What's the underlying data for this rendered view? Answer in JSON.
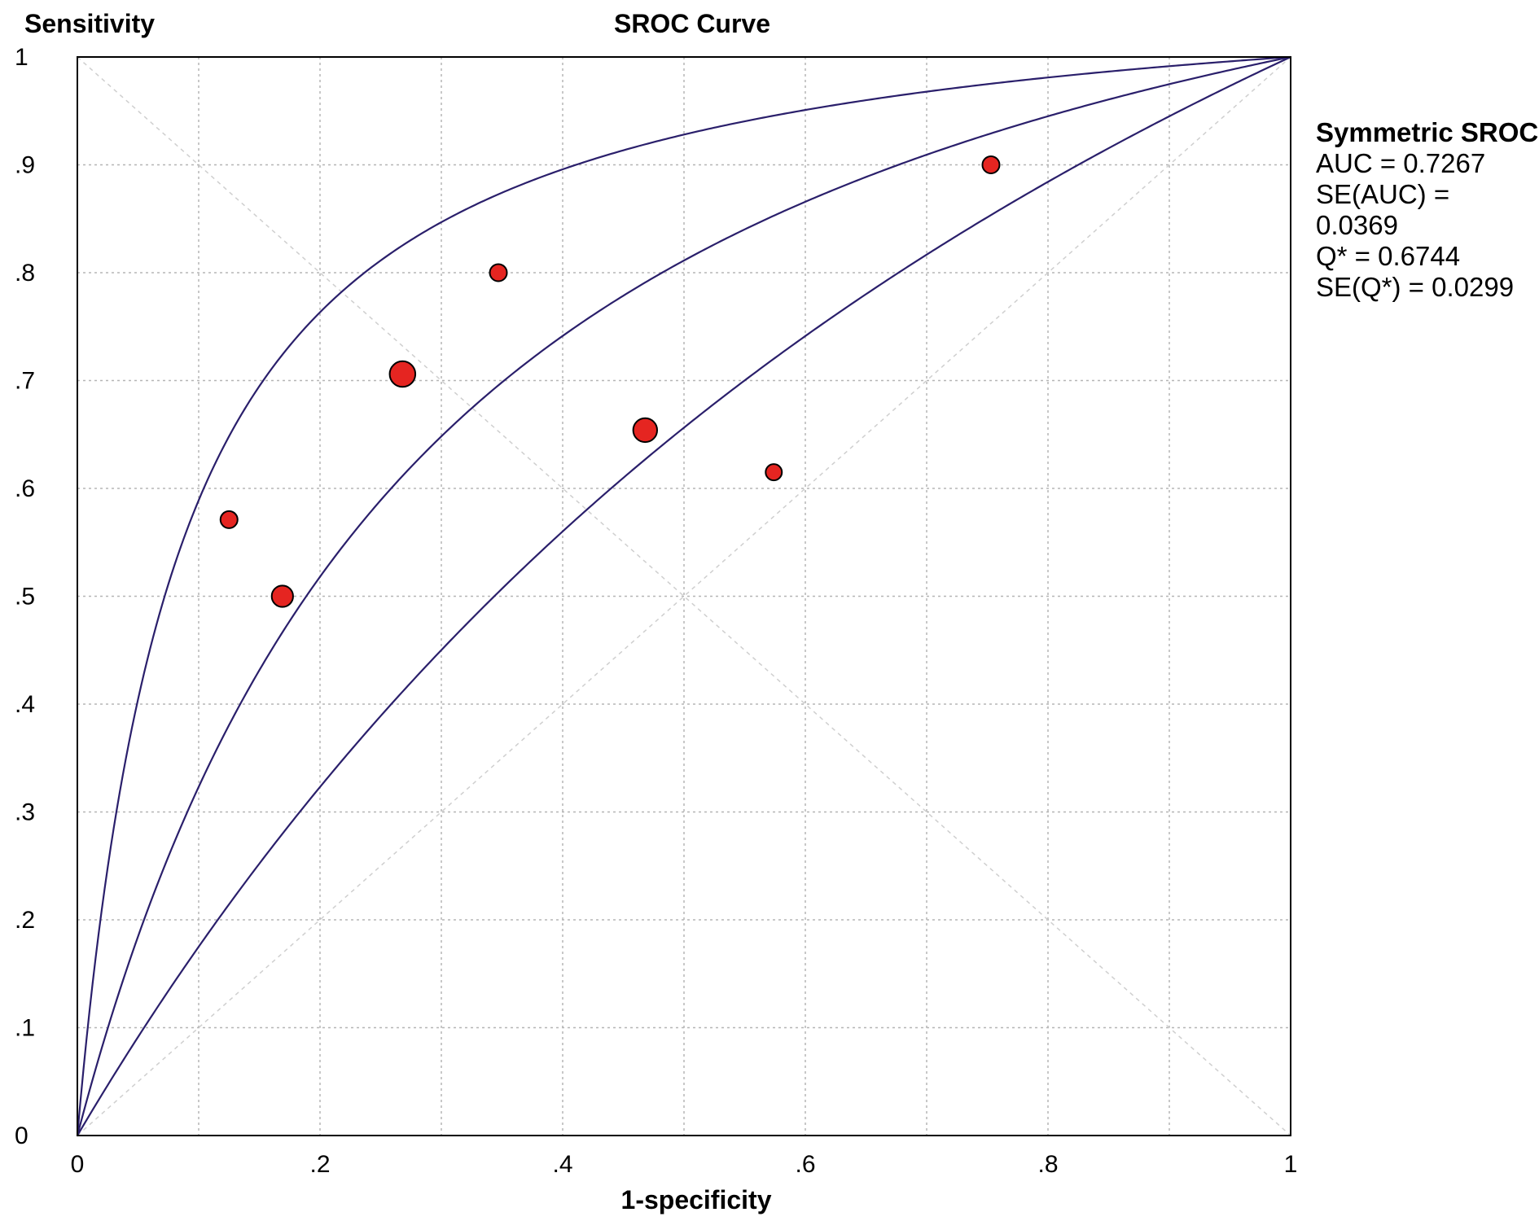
{
  "chart_data": {
    "type": "scatter",
    "title": "SROC Curve",
    "xlabel": "1-specificity",
    "ylabel": "Sensitivity",
    "xlim": [
      0,
      1
    ],
    "ylim": [
      0,
      1
    ],
    "x_ticks": [
      0,
      0.2,
      0.4,
      0.6,
      0.8,
      1
    ],
    "x_tick_labels": [
      "0",
      ".2",
      ".4",
      ".6",
      ".8",
      "1"
    ],
    "y_ticks": [
      0,
      0.1,
      0.2,
      0.3,
      0.4,
      0.5,
      0.6,
      0.7,
      0.8,
      0.9,
      1
    ],
    "y_tick_labels": [
      "0",
      ".1",
      ".2",
      ".3",
      ".4",
      ".5",
      ".6",
      ".7",
      ".8",
      ".9",
      "1"
    ],
    "grid": true,
    "grid_step": 0.1,
    "points": [
      {
        "x": 0.125,
        "y": 0.571,
        "size": 1.0
      },
      {
        "x": 0.169,
        "y": 0.5,
        "size": 1.25
      },
      {
        "x": 0.268,
        "y": 0.706,
        "size": 1.5
      },
      {
        "x": 0.347,
        "y": 0.8,
        "size": 1.0
      },
      {
        "x": 0.468,
        "y": 0.654,
        "size": 1.4
      },
      {
        "x": 0.574,
        "y": 0.615,
        "size": 0.95
      },
      {
        "x": 0.753,
        "y": 0.9,
        "size": 1.0
      }
    ],
    "curves": [
      {
        "role": "upper",
        "diagnostic_odds_ratio": 12.9
      },
      {
        "role": "sroc",
        "diagnostic_odds_ratio": 4.3
      },
      {
        "role": "lower",
        "diagnostic_odds_ratio": 1.91
      }
    ],
    "reference_lines": [
      "diagonal",
      "anti-diagonal"
    ],
    "colors": {
      "points": "#e52521",
      "curves": "#2a1f6b",
      "axes": "#000000",
      "grid": "#b5b5b5"
    }
  },
  "legend": {
    "title": "Symmetric SROC",
    "lines": [
      "AUC = 0.7267",
      "SE(AUC) = 0.0369",
      "Q* = 0.6744",
      "SE(Q*) = 0.0299"
    ]
  }
}
